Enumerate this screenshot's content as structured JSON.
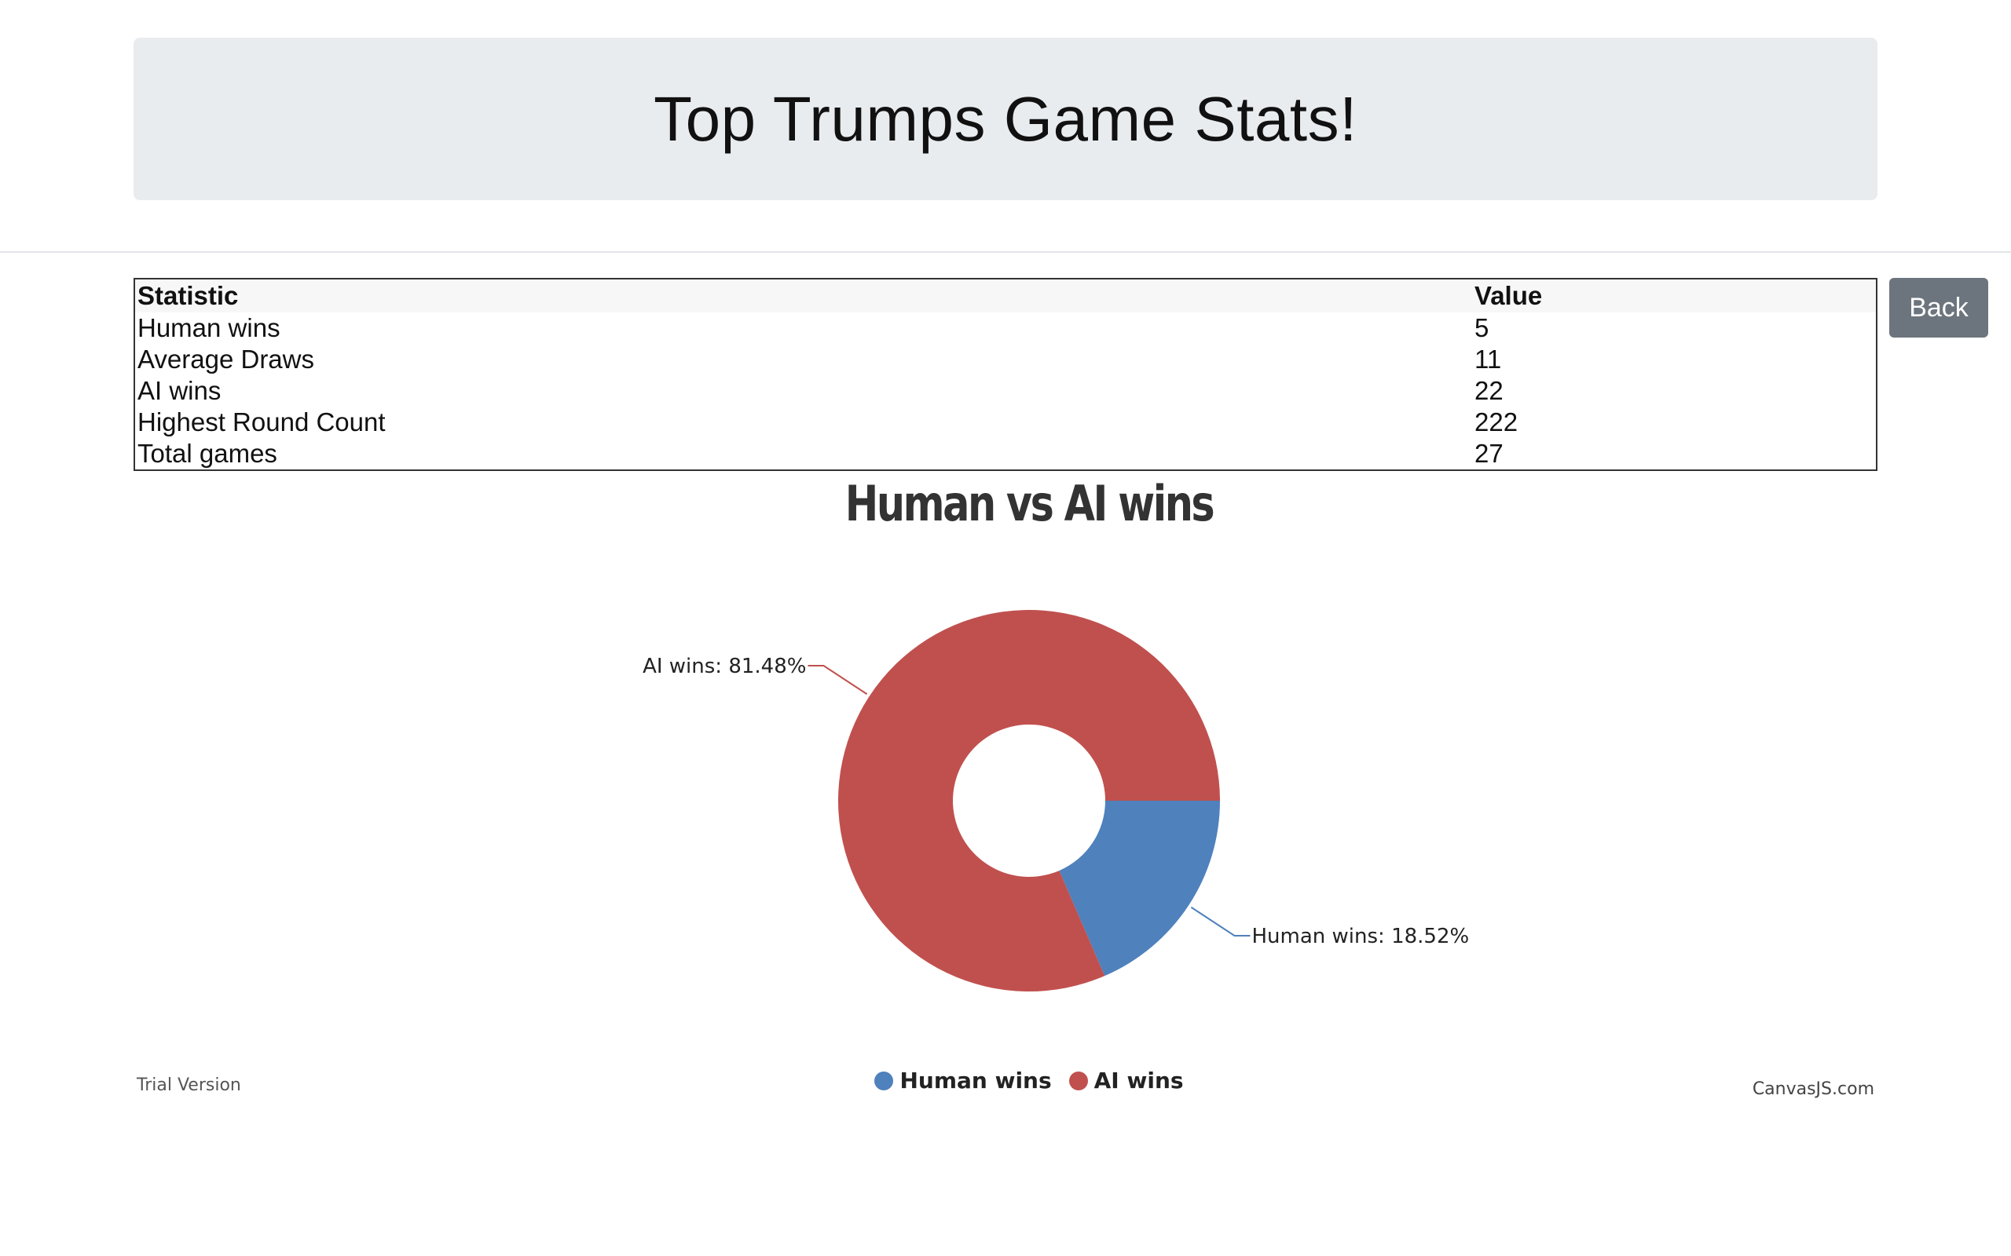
{
  "header": {
    "title": "Top Trumps Game Stats!"
  },
  "table": {
    "headers": [
      "Statistic",
      "Value"
    ],
    "rows": [
      {
        "label": "Human wins",
        "value": "5"
      },
      {
        "label": "Average Draws",
        "value": "11"
      },
      {
        "label": "AI wins",
        "value": "22"
      },
      {
        "label": "Highest Round Count",
        "value": "222"
      },
      {
        "label": "Total games",
        "value": "27"
      }
    ]
  },
  "actions": {
    "back_label": "Back"
  },
  "chart_data": {
    "type": "pie",
    "title": "Human vs AI wins",
    "categories": [
      "Human wins",
      "AI wins"
    ],
    "values": [
      5,
      22
    ],
    "slice_labels": [
      "Human wins: 18.52%",
      "AI wins: 81.48%"
    ],
    "colors": [
      "#4f81bc",
      "#c0504e"
    ],
    "hole": true,
    "legend": "bottom"
  },
  "chart_footer": {
    "trial": "Trial Version",
    "credit": "CanvasJS.com"
  }
}
